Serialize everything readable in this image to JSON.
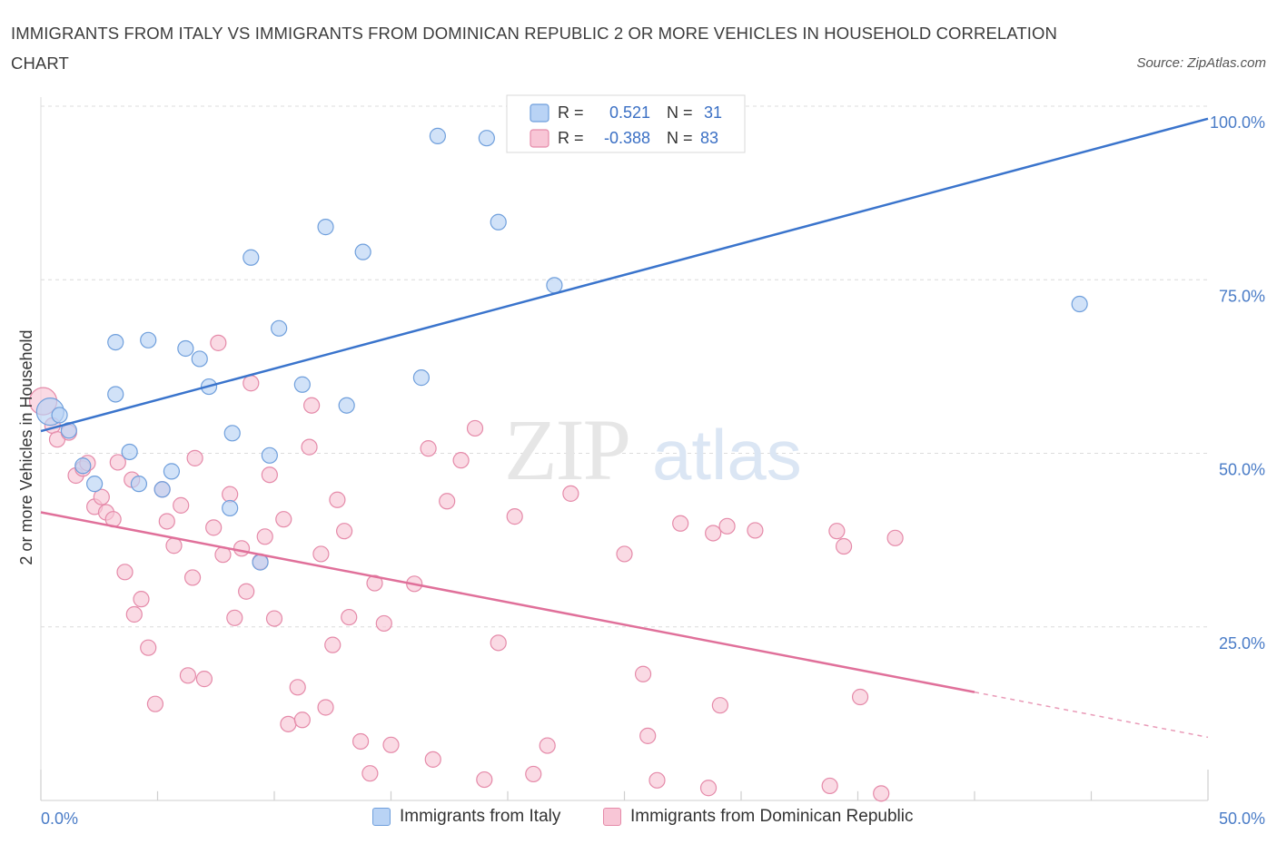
{
  "title": "IMMIGRANTS FROM ITALY VS IMMIGRANTS FROM DOMINICAN REPUBLIC 2 OR MORE VEHICLES IN HOUSEHOLD CORRELATION CHART",
  "source": "Source: ZipAtlas.com",
  "watermark": {
    "zip": "ZIP",
    "atlas": "atlas"
  },
  "colors": {
    "italy_fill": "#b9d3f5",
    "italy_stroke": "#6f9fdc",
    "italy_line": "#3a74cc",
    "dr_fill": "#f8c6d6",
    "dr_stroke": "#e58aa9",
    "dr_line": "#e0709a",
    "grid": "#dcdcdc",
    "axis_text": "#4a7cc7"
  },
  "legend": {
    "r_label": "R =",
    "n_label": "N =",
    "italy": {
      "r": "0.521",
      "n": "31"
    },
    "dr": {
      "r": "-0.388",
      "n": "83"
    }
  },
  "chart_data": {
    "type": "scatter",
    "title": "IMMIGRANTS FROM ITALY VS IMMIGRANTS FROM DOMINICAN REPUBLIC 2 OR MORE VEHICLES IN HOUSEHOLD CORRELATION CHART",
    "xlabel": "",
    "ylabel": "2 or more Vehicles in Household",
    "xlim": [
      0,
      50
    ],
    "ylim": [
      0,
      100
    ],
    "x_tick_labels": [
      "0.0%",
      "50.0%"
    ],
    "y_tick_labels": [
      "100.0%",
      "75.0%",
      "50.0%",
      "25.0%"
    ],
    "y_ticks": [
      100,
      75,
      50,
      25
    ],
    "grid": true,
    "legend_position": "top-center",
    "series": [
      {
        "name": "Immigrants from Italy",
        "r": 0.521,
        "n": 31,
        "trend": {
          "x0": 0,
          "y0": 53.2,
          "x1": 50,
          "y1": 98.2
        },
        "points": [
          [
            0.4,
            56.0
          ],
          [
            0.8,
            55.5
          ],
          [
            1.2,
            53.3
          ],
          [
            1.8,
            48.2
          ],
          [
            2.3,
            45.6
          ],
          [
            3.2,
            66.0
          ],
          [
            3.2,
            58.5
          ],
          [
            3.8,
            50.2
          ],
          [
            4.2,
            45.6
          ],
          [
            4.6,
            66.3
          ],
          [
            5.2,
            44.8
          ],
          [
            5.6,
            47.4
          ],
          [
            6.2,
            65.1
          ],
          [
            6.8,
            63.6
          ],
          [
            7.2,
            59.6
          ],
          [
            8.1,
            42.1
          ],
          [
            8.2,
            52.9
          ],
          [
            9.0,
            78.2
          ],
          [
            9.4,
            34.3
          ],
          [
            9.8,
            49.7
          ],
          [
            10.2,
            68.0
          ],
          [
            11.2,
            59.9
          ],
          [
            12.2,
            82.6
          ],
          [
            13.1,
            56.9
          ],
          [
            13.8,
            79.0
          ],
          [
            16.3,
            60.9
          ],
          [
            17.0,
            95.7
          ],
          [
            19.1,
            95.4
          ],
          [
            19.6,
            83.3
          ],
          [
            22.0,
            74.2
          ],
          [
            44.5,
            71.5
          ]
        ]
      },
      {
        "name": "Immigrants from Dominican Republic",
        "r": -0.388,
        "n": 83,
        "trend": {
          "x0": 0,
          "y0": 41.5,
          "x1": 40,
          "y1": 15.6,
          "dash_to_x": 50,
          "dash_to_y": 9.1
        },
        "points": [
          [
            0.1,
            57.5
          ],
          [
            0.5,
            54.0
          ],
          [
            0.7,
            52.0
          ],
          [
            1.2,
            53.0
          ],
          [
            1.5,
            46.8
          ],
          [
            1.8,
            47.8
          ],
          [
            2.0,
            48.6
          ],
          [
            2.3,
            42.3
          ],
          [
            2.6,
            43.7
          ],
          [
            2.8,
            41.5
          ],
          [
            3.1,
            40.5
          ],
          [
            3.3,
            48.7
          ],
          [
            3.6,
            32.9
          ],
          [
            3.9,
            46.2
          ],
          [
            4.0,
            26.8
          ],
          [
            4.3,
            29.0
          ],
          [
            4.6,
            22.0
          ],
          [
            4.9,
            13.9
          ],
          [
            5.2,
            44.8
          ],
          [
            5.4,
            40.2
          ],
          [
            5.7,
            36.7
          ],
          [
            6.0,
            42.5
          ],
          [
            6.3,
            18.0
          ],
          [
            6.5,
            32.1
          ],
          [
            6.6,
            49.3
          ],
          [
            7.0,
            17.5
          ],
          [
            7.4,
            39.3
          ],
          [
            7.6,
            65.9
          ],
          [
            7.8,
            35.4
          ],
          [
            8.1,
            44.1
          ],
          [
            8.3,
            26.3
          ],
          [
            8.6,
            36.3
          ],
          [
            8.8,
            30.1
          ],
          [
            9.0,
            60.1
          ],
          [
            9.4,
            34.4
          ],
          [
            9.6,
            38.0
          ],
          [
            9.8,
            46.9
          ],
          [
            10.0,
            26.2
          ],
          [
            10.4,
            40.5
          ],
          [
            10.6,
            11.0
          ],
          [
            11.0,
            16.3
          ],
          [
            11.2,
            11.6
          ],
          [
            11.5,
            50.9
          ],
          [
            11.6,
            56.9
          ],
          [
            12.0,
            35.5
          ],
          [
            12.2,
            13.4
          ],
          [
            12.5,
            22.4
          ],
          [
            12.7,
            43.3
          ],
          [
            13.0,
            38.8
          ],
          [
            13.2,
            26.4
          ],
          [
            13.7,
            8.5
          ],
          [
            14.1,
            3.9
          ],
          [
            14.3,
            31.3
          ],
          [
            14.7,
            25.5
          ],
          [
            15.0,
            8.0
          ],
          [
            16.0,
            31.2
          ],
          [
            16.6,
            50.7
          ],
          [
            16.8,
            5.9
          ],
          [
            17.4,
            43.1
          ],
          [
            18.0,
            49.0
          ],
          [
            18.6,
            53.6
          ],
          [
            19.0,
            3.0
          ],
          [
            19.6,
            22.7
          ],
          [
            20.3,
            40.9
          ],
          [
            21.1,
            3.8
          ],
          [
            21.7,
            7.9
          ],
          [
            22.7,
            44.2
          ],
          [
            25.0,
            35.5
          ],
          [
            25.8,
            18.2
          ],
          [
            26.0,
            9.3
          ],
          [
            26.4,
            2.9
          ],
          [
            27.4,
            39.9
          ],
          [
            28.6,
            1.8
          ],
          [
            28.8,
            38.5
          ],
          [
            29.1,
            13.7
          ],
          [
            29.4,
            39.5
          ],
          [
            30.6,
            38.9
          ],
          [
            33.8,
            2.1
          ],
          [
            34.1,
            38.8
          ],
          [
            34.4,
            36.6
          ],
          [
            35.1,
            14.9
          ],
          [
            36.6,
            37.8
          ],
          [
            36.0,
            1.0
          ]
        ]
      }
    ]
  }
}
